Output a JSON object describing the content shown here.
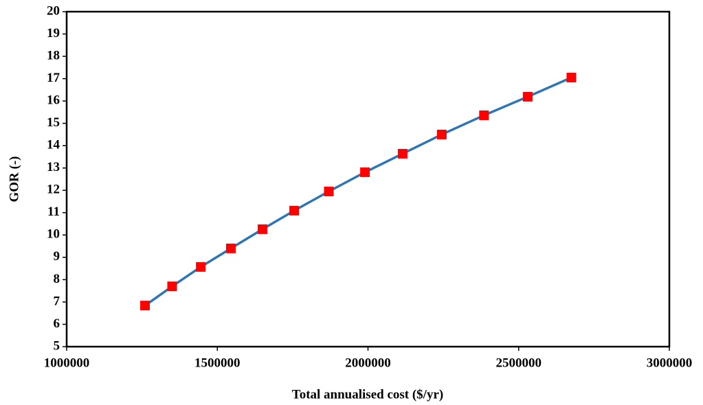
{
  "chart_data": {
    "type": "line",
    "xlabel": "Total annualised cost ($/yr)",
    "ylabel": "GOR (-)",
    "x": [
      1260000,
      1350000,
      1445000,
      1545000,
      1650000,
      1755000,
      1870000,
      1990000,
      2115000,
      2245000,
      2385000,
      2530000,
      2675000
    ],
    "series": [
      {
        "color": "#2e75b6",
        "marker_color": "#ff0000",
        "values": [
          6.84,
          7.7,
          8.57,
          9.4,
          10.26,
          11.09,
          11.95,
          12.81,
          13.64,
          14.5,
          15.36,
          16.19,
          17.05
        ]
      }
    ],
    "xlim": [
      1000000,
      3000000
    ],
    "xticks": [
      1000000,
      1500000,
      2000000,
      2500000,
      3000000
    ],
    "ylim": [
      5,
      20
    ],
    "yticks": [
      5,
      6,
      7,
      8,
      9,
      10,
      11,
      12,
      13,
      14,
      15,
      16,
      17,
      18,
      19,
      20
    ]
  }
}
